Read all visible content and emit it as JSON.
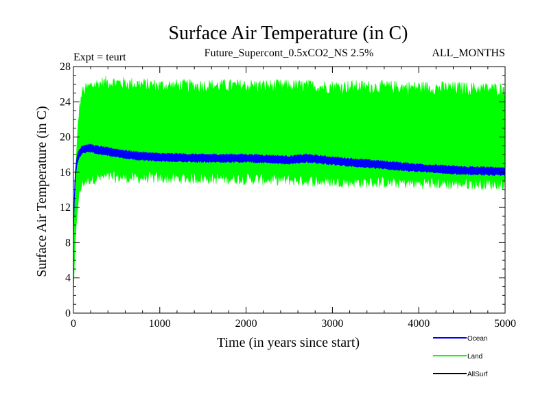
{
  "chart_data": {
    "type": "line",
    "title": "Surface Air Temperature (in C)",
    "subtitle": "Future_Supercont_0.5xCO2_NS 2.5%",
    "left_note": "Expt = teurt",
    "right_note": "ALL_MONTHS",
    "xlabel": "Time (in years since start)",
    "ylabel": "Surface Air Temperature (in C)",
    "xlim": [
      0,
      5000
    ],
    "ylim": [
      0,
      28
    ],
    "xticks": [
      0,
      1000,
      2000,
      3000,
      4000,
      5000
    ],
    "yticks": [
      0,
      4,
      8,
      12,
      16,
      20,
      24,
      28
    ],
    "grid": false,
    "legend_position": "bottom-right",
    "series": [
      {
        "name": "Ocean",
        "color": "#0000ff",
        "x": [
          0,
          10,
          20,
          40,
          60,
          100,
          150,
          200,
          300,
          500,
          700,
          1000,
          1500,
          2000,
          2500,
          2700,
          3000,
          3500,
          4000,
          4500,
          5000
        ],
        "y": [
          9,
          13,
          15.5,
          17.3,
          18.0,
          18.6,
          18.7,
          18.7,
          18.5,
          18.2,
          17.9,
          17.7,
          17.6,
          17.6,
          17.4,
          17.6,
          17.3,
          16.9,
          16.5,
          16.2,
          16.1
        ]
      },
      {
        "name": "Land",
        "color": "#00ff00",
        "x": [
          0,
          10,
          20,
          40,
          60,
          100,
          200,
          400,
          700,
          1000,
          2000,
          3000,
          4000,
          5000
        ],
        "y_min": [
          2,
          5,
          8,
          11,
          13,
          14.8,
          15.3,
          15.5,
          15.4,
          15.4,
          15.3,
          15.0,
          14.8,
          14.7
        ],
        "y_max": [
          8,
          12,
          15,
          19,
          22.5,
          25,
          25.8,
          26.2,
          26.0,
          25.8,
          25.8,
          25.7,
          25.6,
          25.4
        ]
      },
      {
        "name": "AllSurf",
        "color": "#000000",
        "x": [],
        "y": []
      }
    ]
  }
}
